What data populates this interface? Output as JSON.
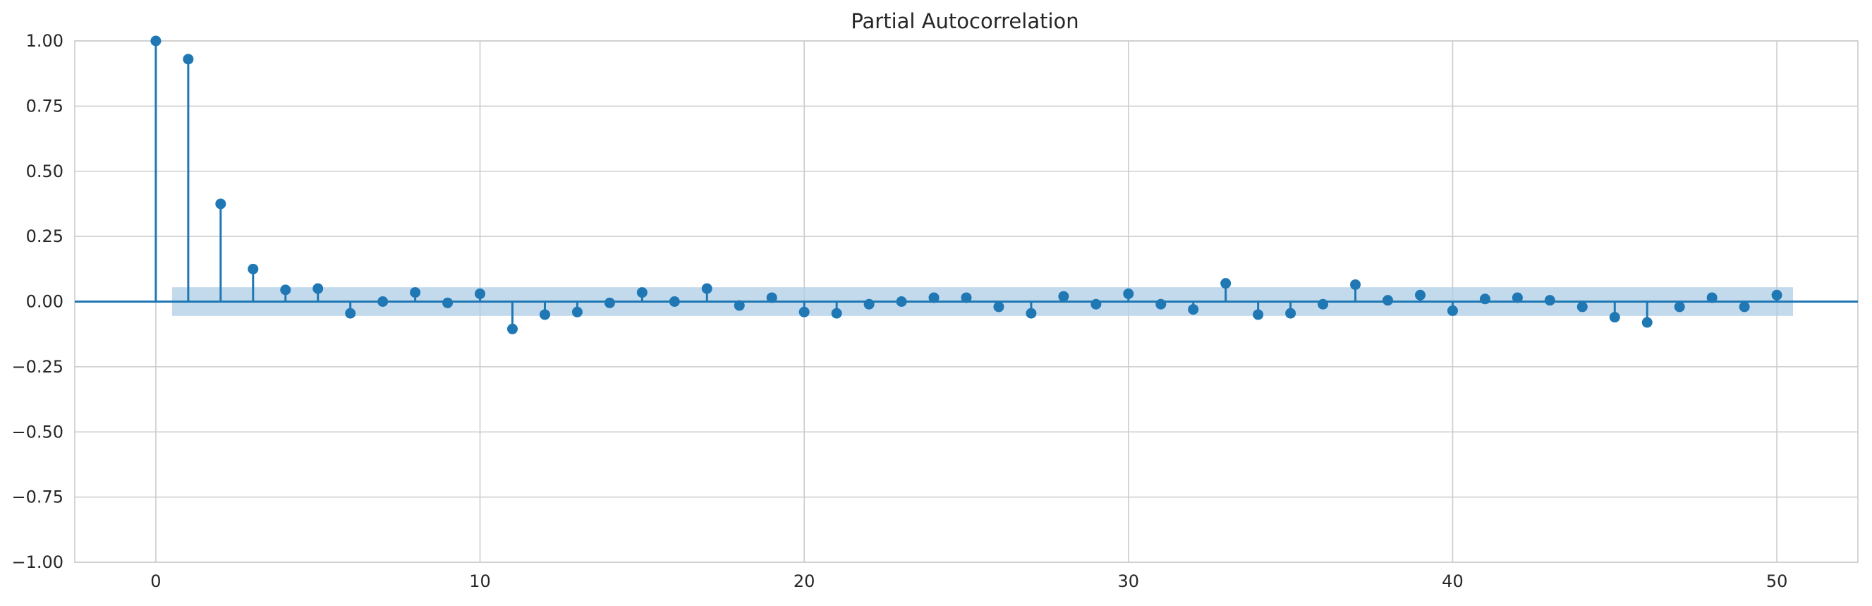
{
  "chart_data": {
    "type": "stem",
    "title": "Partial Autocorrelation",
    "xlabel": "",
    "ylabel": "",
    "xlim": [
      -2.5,
      52.5
    ],
    "ylim": [
      -1.0,
      1.0
    ],
    "x_ticks": [
      0,
      10,
      20,
      30,
      40,
      50
    ],
    "y_ticks": [
      -1.0,
      -0.75,
      -0.5,
      -0.25,
      0.0,
      0.25,
      0.5,
      0.75,
      1.0
    ],
    "y_tick_labels": [
      "−1.00",
      "−0.75",
      "−0.50",
      "−0.25",
      "0.00",
      "0.25",
      "0.50",
      "0.75",
      "1.00"
    ],
    "x_tick_labels": [
      "0",
      "10",
      "20",
      "30",
      "40",
      "50"
    ],
    "grid": true,
    "colors": {
      "stem": "#1f77b4",
      "confidence_band": "#aecde6",
      "grid": "#cccccc"
    },
    "confidence_band": {
      "x_range": [
        0.5,
        50.5
      ],
      "lower": -0.055,
      "upper": 0.055
    },
    "lags": [
      0,
      1,
      2,
      3,
      4,
      5,
      6,
      7,
      8,
      9,
      10,
      11,
      12,
      13,
      14,
      15,
      16,
      17,
      18,
      19,
      20,
      21,
      22,
      23,
      24,
      25,
      26,
      27,
      28,
      29,
      30,
      31,
      32,
      33,
      34,
      35,
      36,
      37,
      38,
      39,
      40,
      41,
      42,
      43,
      44,
      45,
      46,
      47,
      48,
      49,
      50
    ],
    "values": [
      1.0,
      0.93,
      0.375,
      0.125,
      0.045,
      0.05,
      -0.045,
      0.0,
      0.035,
      -0.005,
      0.03,
      -0.105,
      -0.05,
      -0.04,
      -0.005,
      0.035,
      0.0,
      0.05,
      -0.015,
      0.015,
      -0.04,
      -0.045,
      -0.01,
      0.0,
      0.015,
      0.015,
      -0.02,
      -0.045,
      0.02,
      -0.01,
      0.03,
      -0.01,
      -0.03,
      0.07,
      -0.05,
      -0.045,
      -0.01,
      0.065,
      0.005,
      0.025,
      -0.035,
      0.01,
      0.015,
      0.005,
      -0.02,
      -0.06,
      -0.08,
      -0.02,
      0.015,
      -0.02,
      0.025
    ]
  }
}
